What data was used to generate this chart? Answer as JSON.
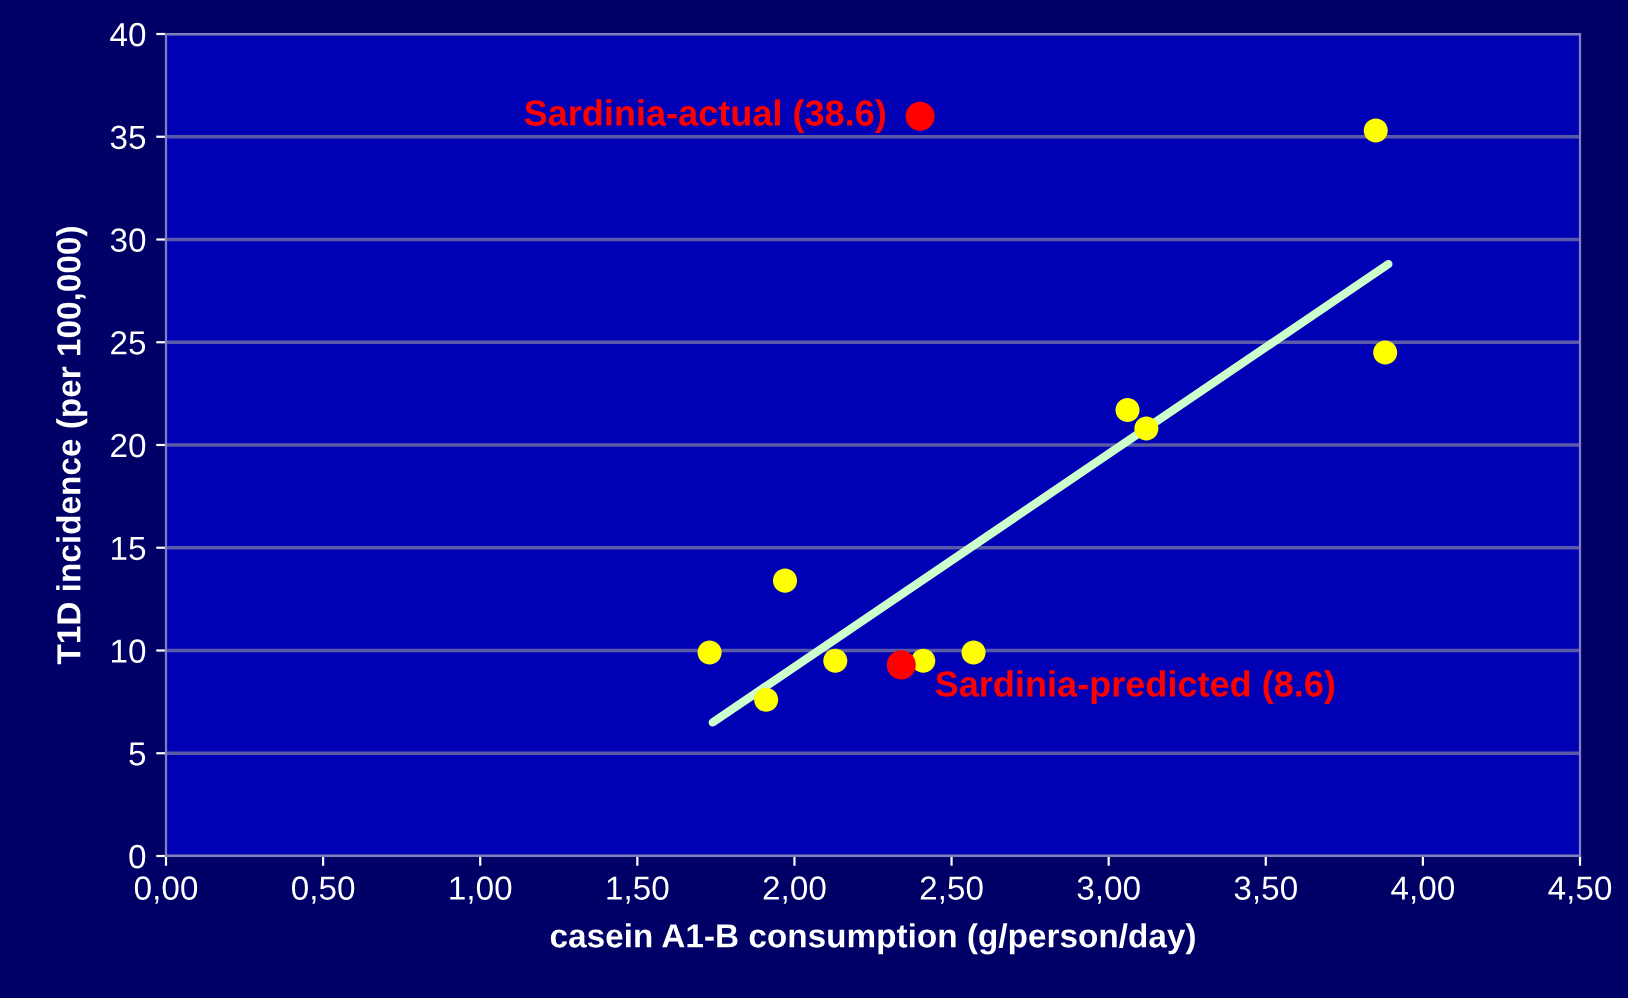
{
  "chart_data": {
    "type": "scatter",
    "xlabel": "casein A1-B consumption (g/person/day)",
    "ylabel": "T1D incidence (per 100,000)",
    "series": [
      {
        "color": "#ffff00",
        "x": [
          1.73,
          1.91,
          1.97,
          2.13,
          2.41,
          2.57,
          3.06,
          3.12,
          3.85,
          3.88
        ],
        "values": [
          9.9,
          7.6,
          13.4,
          9.5,
          9.5,
          9.9,
          21.7,
          20.8,
          35.3,
          24.5
        ]
      },
      {
        "color": "#ff0000",
        "x": [
          2.4,
          2.34
        ],
        "values": [
          36.0,
          9.3
        ]
      },
      {
        "type": "line",
        "color": "#ccffcc",
        "x": [
          1.74,
          3.89
        ],
        "values": [
          6.5,
          28.8
        ]
      }
    ],
    "annotations": [
      {
        "text": "Sardinia-actual (38.6)",
        "x": 2.4,
        "y": 36.0
      },
      {
        "text": "Sardinia-predicted (8.6)",
        "x": 2.34,
        "y": 9.3
      }
    ],
    "xlim": [
      0,
      4.5
    ],
    "ylim": [
      0,
      40
    ],
    "xticks": [
      {
        "value": 0,
        "label": "0,00"
      },
      {
        "value": 0.5,
        "label": "0,50"
      },
      {
        "value": 1,
        "label": "1,00"
      },
      {
        "value": 1.5,
        "label": "1,50"
      },
      {
        "value": 2,
        "label": "2,00"
      },
      {
        "value": 2.5,
        "label": "2,50"
      },
      {
        "value": 3,
        "label": "3,00"
      },
      {
        "value": 3.5,
        "label": "3,50"
      },
      {
        "value": 4,
        "label": "4,00"
      },
      {
        "value": 4.5,
        "label": "4,50"
      }
    ],
    "yticks": [
      0,
      5,
      10,
      15,
      20,
      25,
      30,
      35,
      40
    ],
    "grid": "y",
    "legend": false
  }
}
